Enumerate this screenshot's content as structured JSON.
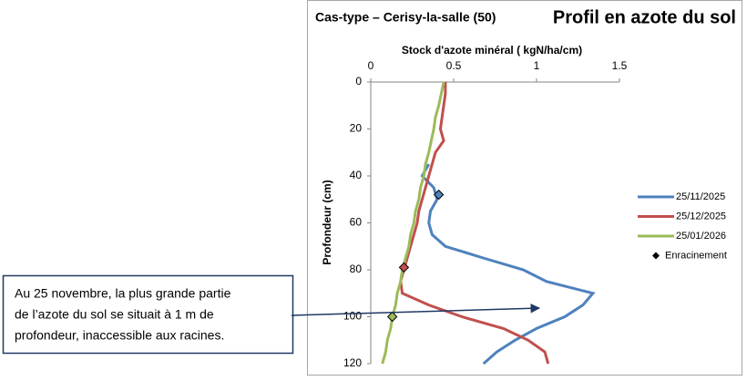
{
  "chart_data": {
    "type": "line",
    "title": "Profil en azote du sol",
    "subtitle": "Cas-type – Cerisy-la-salle (50)",
    "x_label": "Stock d'azote minéral ( kgN/ha/cm)",
    "y_label": "Profondeur (cm)",
    "y": [
      0,
      5,
      10,
      15,
      20,
      25,
      30,
      35,
      40,
      45,
      50,
      55,
      60,
      65,
      70,
      75,
      80,
      85,
      90,
      95,
      100,
      105,
      110,
      115,
      120
    ],
    "series": [
      {
        "name": "25/11/2025",
        "color": "#4f81bd",
        "values": [
          null,
          null,
          null,
          null,
          null,
          null,
          null,
          0.35,
          0.31,
          0.38,
          0.4,
          0.36,
          0.35,
          0.37,
          0.45,
          0.68,
          0.92,
          1.06,
          1.34,
          1.28,
          1.17,
          1.0,
          0.87,
          0.76,
          0.68
        ]
      },
      {
        "name": "25/12/2025",
        "color": "#c0504d",
        "values": [
          0.45,
          0.45,
          0.44,
          0.43,
          0.42,
          0.44,
          0.39,
          0.37,
          0.35,
          0.33,
          0.31,
          0.29,
          0.28,
          0.26,
          0.24,
          0.22,
          0.2,
          0.18,
          0.19,
          0.35,
          0.55,
          0.8,
          0.95,
          1.05,
          1.07
        ]
      },
      {
        "name": "25/01/2026",
        "color": "#9bbb59",
        "values": [
          0.44,
          0.425,
          0.41,
          0.39,
          0.38,
          0.365,
          0.35,
          0.33,
          0.32,
          0.3,
          0.29,
          0.27,
          0.26,
          0.24,
          0.23,
          0.21,
          0.19,
          0.18,
          0.16,
          0.15,
          0.13,
          0.12,
          0.1,
          0.09,
          0.07
        ]
      }
    ],
    "markers": {
      "name": "Enracinement",
      "color": "#000000",
      "values": [
        0.41,
        0.2,
        0.13
      ],
      "depths": [
        48,
        79,
        100
      ],
      "colors": [
        "#4f81bd",
        "#c0504d",
        "#9bbb59"
      ]
    },
    "xlim": [
      0,
      1.5
    ],
    "xticks": [
      0,
      0.5,
      1,
      1.5
    ],
    "ylim": [
      0,
      120
    ],
    "yticks": [
      0,
      20,
      40,
      60,
      80,
      100,
      120
    ],
    "annotation": {
      "lines": [
        "Au 25 novembre, la plus grande partie",
        "de l’azote du sol se situait à 1 m de",
        "profondeur, inaccessible aux racines."
      ]
    }
  }
}
